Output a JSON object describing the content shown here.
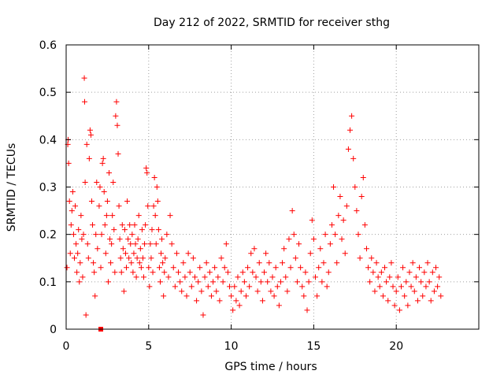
{
  "chart_data": {
    "type": "scatter",
    "title": "Day 212 of 2022, SRMTID for receiver sthg",
    "xlabel": "GPS time / hours",
    "ylabel": "SRMTID / TECUs",
    "xlim": [
      0,
      25
    ],
    "ylim": [
      0,
      0.6
    ],
    "xticks": [
      0,
      5,
      10,
      15,
      20
    ],
    "xtick_labels": [
      "0",
      "5",
      "10",
      "15",
      "20"
    ],
    "yticks": [
      0,
      0.1,
      0.2,
      0.3,
      0.4,
      0.5,
      0.6
    ],
    "ytick_labels": [
      "0",
      "0.1",
      "0.2",
      "0.3",
      "0.4",
      "0.5",
      "0.6"
    ],
    "grid": true,
    "marker": "plus",
    "color": "#ff0000",
    "series": [
      {
        "name": "SRMTID",
        "points": [
          [
            0.05,
            0.13
          ],
          [
            0.1,
            0.39
          ],
          [
            0.12,
            0.4
          ],
          [
            0.15,
            0.35
          ],
          [
            0.2,
            0.27
          ],
          [
            0.25,
            0.16
          ],
          [
            0.3,
            0.22
          ],
          [
            0.35,
            0.25
          ],
          [
            0.4,
            0.29
          ],
          [
            0.45,
            0.2
          ],
          [
            0.5,
            0.15
          ],
          [
            0.55,
            0.26
          ],
          [
            0.6,
            0.18
          ],
          [
            0.65,
            0.12
          ],
          [
            0.7,
            0.16
          ],
          [
            0.75,
            0.21
          ],
          [
            0.8,
            0.1
          ],
          [
            0.85,
            0.14
          ],
          [
            0.9,
            0.24
          ],
          [
            0.95,
            0.19
          ],
          [
            1.0,
            0.11
          ],
          [
            1.05,
            0.2
          ],
          [
            1.1,
            0.53
          ],
          [
            1.12,
            0.48
          ],
          [
            1.15,
            0.31
          ],
          [
            1.2,
            0.03
          ],
          [
            1.25,
            0.39
          ],
          [
            1.3,
            0.18
          ],
          [
            1.35,
            0.15
          ],
          [
            1.4,
            0.36
          ],
          [
            1.45,
            0.42
          ],
          [
            1.5,
            0.41
          ],
          [
            1.55,
            0.27
          ],
          [
            1.6,
            0.22
          ],
          [
            1.65,
            0.14
          ],
          [
            1.7,
            0.12
          ],
          [
            1.75,
            0.07
          ],
          [
            1.8,
            0.2
          ],
          [
            1.85,
            0.31
          ],
          [
            1.9,
            0.17
          ],
          [
            2.0,
            0.26
          ],
          [
            2.05,
            0.3
          ],
          [
            2.1,
            0.13
          ],
          [
            2.15,
            0.2
          ],
          [
            2.2,
            0.35
          ],
          [
            2.25,
            0.36
          ],
          [
            2.3,
            0.29
          ],
          [
            2.35,
            0.22
          ],
          [
            2.4,
            0.16
          ],
          [
            2.45,
            0.24
          ],
          [
            2.5,
            0.27
          ],
          [
            2.55,
            0.1
          ],
          [
            2.6,
            0.33
          ],
          [
            2.65,
            0.19
          ],
          [
            2.7,
            0.14
          ],
          [
            2.75,
            0.18
          ],
          [
            2.8,
            0.24
          ],
          [
            2.85,
            0.31
          ],
          [
            2.9,
            0.21
          ],
          [
            2.95,
            0.12
          ],
          [
            3.0,
            0.45
          ],
          [
            3.05,
            0.48
          ],
          [
            3.1,
            0.43
          ],
          [
            3.15,
            0.37
          ],
          [
            3.2,
            0.26
          ],
          [
            3.25,
            0.19
          ],
          [
            3.3,
            0.15
          ],
          [
            3.35,
            0.12
          ],
          [
            3.4,
            0.22
          ],
          [
            3.45,
            0.17
          ],
          [
            3.5,
            0.08
          ],
          [
            3.55,
            0.21
          ],
          [
            3.6,
            0.16
          ],
          [
            3.65,
            0.13
          ],
          [
            3.7,
            0.27
          ],
          [
            3.75,
            0.19
          ],
          [
            3.8,
            0.15
          ],
          [
            3.85,
            0.22
          ],
          [
            3.9,
            0.18
          ],
          [
            3.95,
            0.14
          ],
          [
            4.0,
            0.2
          ],
          [
            4.05,
            0.12
          ],
          [
            4.1,
            0.16
          ],
          [
            4.15,
            0.22
          ],
          [
            4.2,
            0.18
          ],
          [
            4.25,
            0.11
          ],
          [
            4.3,
            0.15
          ],
          [
            4.35,
            0.19
          ],
          [
            4.4,
            0.24
          ],
          [
            4.45,
            0.14
          ],
          [
            4.5,
            0.17
          ],
          [
            4.55,
            0.13
          ],
          [
            4.6,
            0.21
          ],
          [
            4.65,
            0.15
          ],
          [
            4.7,
            0.11
          ],
          [
            4.75,
            0.18
          ],
          [
            4.8,
            0.22
          ],
          [
            4.85,
            0.34
          ],
          [
            4.9,
            0.33
          ],
          [
            4.95,
            0.26
          ],
          [
            5.0,
            0.13
          ],
          [
            5.05,
            0.09
          ],
          [
            5.1,
            0.18
          ],
          [
            5.15,
            0.15
          ],
          [
            5.2,
            0.21
          ],
          [
            5.25,
            0.12
          ],
          [
            5.3,
            0.26
          ],
          [
            5.35,
            0.32
          ],
          [
            5.4,
            0.24
          ],
          [
            5.45,
            0.18
          ],
          [
            5.5,
            0.3
          ],
          [
            5.55,
            0.27
          ],
          [
            5.6,
            0.21
          ],
          [
            5.65,
            0.13
          ],
          [
            5.7,
            0.1
          ],
          [
            5.75,
            0.16
          ],
          [
            5.8,
            0.19
          ],
          [
            5.85,
            0.14
          ],
          [
            5.9,
            0.07
          ],
          [
            5.95,
            0.12
          ],
          [
            6.0,
            0.15
          ],
          [
            6.1,
            0.2
          ],
          [
            6.2,
            0.11
          ],
          [
            6.3,
            0.24
          ],
          [
            6.4,
            0.18
          ],
          [
            6.5,
            0.13
          ],
          [
            6.6,
            0.09
          ],
          [
            6.7,
            0.16
          ],
          [
            6.8,
            0.12
          ],
          [
            6.9,
            0.1
          ],
          [
            7.0,
            0.08
          ],
          [
            7.1,
            0.14
          ],
          [
            7.2,
            0.11
          ],
          [
            7.3,
            0.07
          ],
          [
            7.4,
            0.16
          ],
          [
            7.5,
            0.12
          ],
          [
            7.6,
            0.09
          ],
          [
            7.7,
            0.15
          ],
          [
            7.8,
            0.11
          ],
          [
            7.9,
            0.06
          ],
          [
            8.0,
            0.1
          ],
          [
            8.1,
            0.13
          ],
          [
            8.2,
            0.08
          ],
          [
            8.3,
            0.03
          ],
          [
            8.4,
            0.11
          ],
          [
            8.5,
            0.14
          ],
          [
            8.6,
            0.09
          ],
          [
            8.7,
            0.12
          ],
          [
            8.8,
            0.07
          ],
          [
            8.9,
            0.1
          ],
          [
            9.0,
            0.13
          ],
          [
            9.1,
            0.08
          ],
          [
            9.2,
            0.11
          ],
          [
            9.3,
            0.06
          ],
          [
            9.4,
            0.15
          ],
          [
            9.5,
            0.1
          ],
          [
            9.6,
            0.13
          ],
          [
            9.7,
            0.18
          ],
          [
            9.8,
            0.12
          ],
          [
            9.9,
            0.09
          ],
          [
            10.0,
            0.07
          ],
          [
            10.1,
            0.04
          ],
          [
            10.2,
            0.09
          ],
          [
            10.3,
            0.06
          ],
          [
            10.4,
            0.11
          ],
          [
            10.5,
            0.05
          ],
          [
            10.6,
            0.08
          ],
          [
            10.7,
            0.12
          ],
          [
            10.8,
            0.1
          ],
          [
            10.9,
            0.07
          ],
          [
            11.0,
            0.13
          ],
          [
            11.1,
            0.09
          ],
          [
            11.2,
            0.16
          ],
          [
            11.3,
            0.12
          ],
          [
            11.4,
            0.17
          ],
          [
            11.5,
            0.11
          ],
          [
            11.6,
            0.08
          ],
          [
            11.7,
            0.14
          ],
          [
            11.8,
            0.1
          ],
          [
            11.9,
            0.06
          ],
          [
            12.0,
            0.12
          ],
          [
            12.1,
            0.16
          ],
          [
            12.2,
            0.1
          ],
          [
            12.3,
            0.14
          ],
          [
            12.4,
            0.08
          ],
          [
            12.5,
            0.11
          ],
          [
            12.6,
            0.07
          ],
          [
            12.7,
            0.13
          ],
          [
            12.8,
            0.09
          ],
          [
            12.9,
            0.05
          ],
          [
            13.0,
            0.1
          ],
          [
            13.1,
            0.14
          ],
          [
            13.2,
            0.17
          ],
          [
            13.3,
            0.11
          ],
          [
            13.4,
            0.08
          ],
          [
            13.5,
            0.19
          ],
          [
            13.6,
            0.13
          ],
          [
            13.7,
            0.25
          ],
          [
            13.8,
            0.2
          ],
          [
            13.9,
            0.15
          ],
          [
            14.0,
            0.1
          ],
          [
            14.1,
            0.18
          ],
          [
            14.2,
            0.13
          ],
          [
            14.3,
            0.09
          ],
          [
            14.4,
            0.07
          ],
          [
            14.5,
            0.12
          ],
          [
            14.6,
            0.04
          ],
          [
            14.7,
            0.1
          ],
          [
            14.8,
            0.16
          ],
          [
            14.9,
            0.23
          ],
          [
            15.0,
            0.19
          ],
          [
            15.1,
            0.11
          ],
          [
            15.2,
            0.07
          ],
          [
            15.3,
            0.13
          ],
          [
            15.4,
            0.17
          ],
          [
            15.5,
            0.1
          ],
          [
            15.6,
            0.14
          ],
          [
            15.7,
            0.2
          ],
          [
            15.8,
            0.09
          ],
          [
            15.9,
            0.12
          ],
          [
            16.0,
            0.18
          ],
          [
            16.1,
            0.22
          ],
          [
            16.2,
            0.3
          ],
          [
            16.3,
            0.2
          ],
          [
            16.4,
            0.14
          ],
          [
            16.5,
            0.24
          ],
          [
            16.6,
            0.28
          ],
          [
            16.7,
            0.19
          ],
          [
            16.8,
            0.23
          ],
          [
            16.9,
            0.16
          ],
          [
            17.0,
            0.26
          ],
          [
            17.1,
            0.38
          ],
          [
            17.2,
            0.42
          ],
          [
            17.3,
            0.45
          ],
          [
            17.4,
            0.36
          ],
          [
            17.5,
            0.3
          ],
          [
            17.6,
            0.25
          ],
          [
            17.7,
            0.2
          ],
          [
            17.8,
            0.15
          ],
          [
            17.9,
            0.28
          ],
          [
            18.0,
            0.32
          ],
          [
            18.1,
            0.22
          ],
          [
            18.2,
            0.17
          ],
          [
            18.3,
            0.13
          ],
          [
            18.4,
            0.1
          ],
          [
            18.5,
            0.15
          ],
          [
            18.6,
            0.12
          ],
          [
            18.7,
            0.08
          ],
          [
            18.8,
            0.14
          ],
          [
            18.9,
            0.11
          ],
          [
            19.0,
            0.09
          ],
          [
            19.1,
            0.12
          ],
          [
            19.2,
            0.07
          ],
          [
            19.3,
            0.13
          ],
          [
            19.4,
            0.1
          ],
          [
            19.5,
            0.06
          ],
          [
            19.6,
            0.11
          ],
          [
            19.7,
            0.14
          ],
          [
            19.8,
            0.09
          ],
          [
            19.9,
            0.05
          ],
          [
            20.0,
            0.08
          ],
          [
            20.1,
            0.11
          ],
          [
            20.2,
            0.04
          ],
          [
            20.3,
            0.09
          ],
          [
            20.4,
            0.13
          ],
          [
            20.5,
            0.07
          ],
          [
            20.6,
            0.1
          ],
          [
            20.7,
            0.05
          ],
          [
            20.8,
            0.12
          ],
          [
            20.9,
            0.09
          ],
          [
            21.0,
            0.14
          ],
          [
            21.1,
            0.08
          ],
          [
            21.2,
            0.11
          ],
          [
            21.3,
            0.06
          ],
          [
            21.4,
            0.13
          ],
          [
            21.5,
            0.1
          ],
          [
            21.6,
            0.07
          ],
          [
            21.7,
            0.12
          ],
          [
            21.8,
            0.09
          ],
          [
            21.9,
            0.14
          ],
          [
            22.0,
            0.1
          ],
          [
            22.1,
            0.06
          ],
          [
            22.2,
            0.12
          ],
          [
            22.3,
            0.08
          ],
          [
            22.4,
            0.13
          ],
          [
            22.5,
            0.09
          ],
          [
            22.6,
            0.11
          ],
          [
            22.7,
            0.07
          ]
        ]
      }
    ],
    "outlier": {
      "marker": "square",
      "x": 2.1,
      "y": 0.0
    }
  }
}
